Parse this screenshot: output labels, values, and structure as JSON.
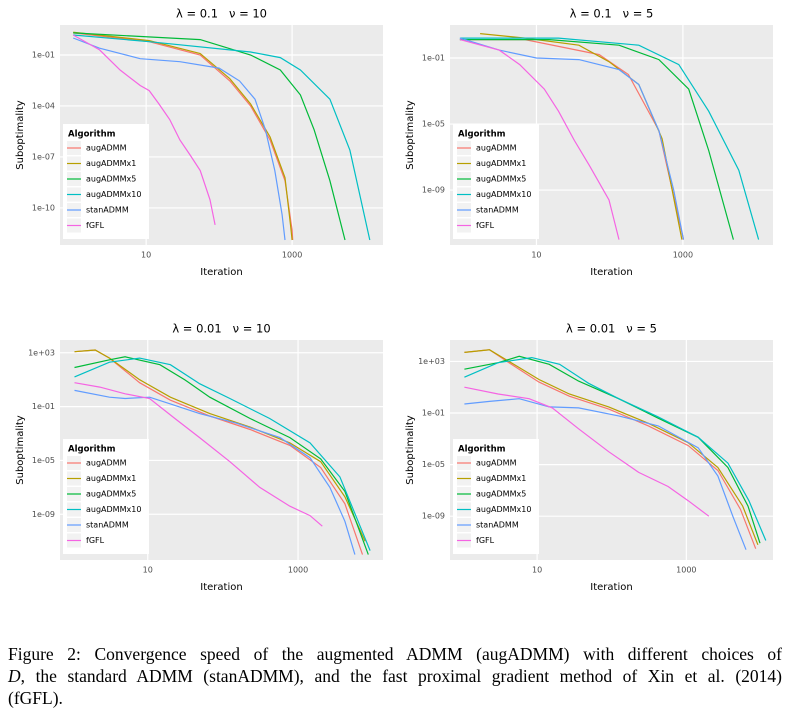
{
  "chart_data": [
    {
      "type": "line",
      "title": "λ = 0.1   ν = 10",
      "xlabel": "Iteration",
      "ylabel": "Suboptimality",
      "legend_title": "Algorithm",
      "legend": "bottom-left",
      "grid": true,
      "xlog": true,
      "ylog": true,
      "xlim": [
        0.66,
        17600
      ],
      "ylim": [
        6.6e-13,
        5.8
      ],
      "xticks": [
        10,
        1000
      ],
      "yticks": [
        {
          "value": 0.1,
          "label": "1e-01"
        },
        {
          "value": 0.0001,
          "label": "1e-04"
        },
        {
          "value": 1e-07,
          "label": "1e-07"
        },
        {
          "value": 1e-10,
          "label": "1e-10"
        }
      ],
      "series": [
        {
          "name": "augADMM",
          "color": "#F8766D",
          "x": [
            1,
            11,
            55,
            140,
            270,
            500,
            800,
            1000,
            1020
          ],
          "values": [
            2,
            0.6,
            0.1,
            0.003,
            0.0001,
            1e-06,
            4e-09,
            5e-12,
            1.3e-12
          ]
        },
        {
          "name": "augADMMx1",
          "color": "#B79F00",
          "x": [
            1,
            11,
            55,
            140,
            270,
            500,
            800,
            950,
            1000
          ],
          "values": [
            2.2,
            0.7,
            0.12,
            0.004,
            0.00013,
            1.5e-06,
            6e-09,
            1e-11,
            1.3e-12
          ]
        },
        {
          "name": "augADMMx5",
          "color": "#00BA38",
          "x": [
            1,
            55,
            270,
            690,
            1300,
            2000,
            3300,
            5300
          ],
          "values": [
            2,
            0.8,
            0.1,
            0.013,
            0.00045,
            4e-06,
            4e-09,
            1.3e-12
          ]
        },
        {
          "name": "augADMMx10",
          "color": "#00BFC4",
          "x": [
            1,
            11,
            270,
            690,
            1300,
            3300,
            6200,
            11600
          ],
          "values": [
            1.5,
            0.6,
            0.15,
            0.07,
            0.013,
            0.00025,
            2.5e-07,
            1.3e-12
          ]
        },
        {
          "name": "stanADMM",
          "color": "#619CFF",
          "x": [
            1,
            2.3,
            8.3,
            29,
            100,
            190,
            310,
            430,
            580,
            730,
            800
          ],
          "values": [
            1,
            0.25,
            0.06,
            0.04,
            0.017,
            0.003,
            0.00025,
            4e-06,
            1.6e-08,
            4e-11,
            1.3e-12
          ]
        },
        {
          "name": "fGFL",
          "color": "#F564E3",
          "x": [
            1,
            2.3,
            4.4,
            8.3,
            11,
            15,
            21,
            29,
            40,
            55,
            75,
            88
          ],
          "values": [
            1.5,
            0.2,
            0.013,
            0.0016,
            0.0008,
            0.00013,
            1.6e-05,
            1e-06,
            1.3e-07,
            1.6e-08,
            3e-10,
            1e-11
          ]
        }
      ]
    },
    {
      "type": "line",
      "title": "λ = 0.1   ν = 5",
      "xlabel": "Iteration",
      "ylabel": "Suboptimality",
      "legend_title": "Algorithm",
      "legend": "bottom-left",
      "grid": true,
      "xlog": true,
      "ylog": true,
      "xlim": [
        0.66,
        17000
      ],
      "ylim": [
        4.7e-13,
        10
      ],
      "xticks": [
        10,
        1000
      ],
      "yticks": [
        {
          "value": 0.1,
          "label": "1e-01"
        },
        {
          "value": 1e-05,
          "label": "1e-05"
        },
        {
          "value": 1e-09,
          "label": "1e-09"
        }
      ],
      "series": [
        {
          "name": "augADMM",
          "color": "#F8766D",
          "x": [
            0.9,
            7,
            72,
            180,
            470,
            1020
          ],
          "values": [
            1.3,
            1.3,
            0.16,
            0.01,
            4e-06,
            1e-12
          ]
        },
        {
          "name": "augADMMx1",
          "color": "#B79F00",
          "x": [
            1.7,
            7,
            38,
            98,
            250,
            520,
            970
          ],
          "values": [
            3,
            1.6,
            0.6,
            0.06,
            0.0025,
            1.3e-06,
            1e-12
          ]
        },
        {
          "name": "augADMMx5",
          "color": "#00BA38",
          "x": [
            0.9,
            15,
            134,
            470,
            1200,
            2250,
            4900
          ],
          "values": [
            1.3,
            1.3,
            0.6,
            0.08,
            0.0013,
            2.5e-07,
            1e-12
          ]
        },
        {
          "name": "augADMMx10",
          "color": "#00BFC4",
          "x": [
            0.9,
            20,
            250,
            880,
            2250,
            5800,
            10800
          ],
          "values": [
            1.6,
            1.6,
            0.6,
            0.04,
            6e-05,
            1.6e-08,
            1e-12
          ]
        },
        {
          "name": "stanADMM",
          "color": "#619CFF",
          "x": [
            0.9,
            3.1,
            10,
            38,
            134,
            250,
            470,
            750,
            1020
          ],
          "values": [
            1.6,
            0.3,
            0.1,
            0.08,
            0.02,
            0.0025,
            4e-06,
            1e-09,
            1e-12
          ]
        },
        {
          "name": "fGFL",
          "color": "#F564E3",
          "x": [
            0.9,
            3.1,
            5.9,
            12.8,
            20,
            33,
            53,
            98,
            134
          ],
          "values": [
            1.3,
            0.3,
            0.04,
            0.0013,
            6e-05,
            1e-06,
            3e-08,
            2.5e-10,
            1e-12
          ]
        }
      ]
    },
    {
      "type": "line",
      "title": "λ = 0.01   ν = 10",
      "xlabel": "Iteration",
      "ylabel": "Suboptimality",
      "legend_title": "Algorithm",
      "legend": "bottom-left",
      "grid": true,
      "xlog": true,
      "ylog": true,
      "xlim": [
        0.68,
        13500
      ],
      "ylim": [
        4e-13,
        8900
      ],
      "xticks": [
        10,
        1000
      ],
      "yticks": [
        {
          "value": 1000,
          "label": "1e+03"
        },
        {
          "value": 0.1,
          "label": "1e-01"
        },
        {
          "value": 1e-05,
          "label": "1e-05"
        },
        {
          "value": 1e-09,
          "label": "1e-09"
        }
      ],
      "series": [
        {
          "name": "augADMM",
          "color": "#F8766D",
          "x": [
            1.06,
            2,
            3.1,
            7.8,
            20,
            67,
            230,
            780,
            2000,
            4200,
            7200
          ],
          "values": [
            1200,
            1600,
            400,
            6,
            0.3,
            0.02,
            0.002,
            0.00013,
            3e-06,
            6e-09,
            1e-12
          ]
        },
        {
          "name": "augADMMx1",
          "color": "#B79F00",
          "x": [
            1.06,
            2,
            3.1,
            7.8,
            20,
            67,
            230,
            780,
            2000,
            4200,
            7800
          ],
          "values": [
            1200,
            1600,
            400,
            10,
            0.5,
            0.03,
            0.003,
            0.0002,
            8e-06,
            2e-08,
            1e-11
          ]
        },
        {
          "name": "augADMMx5",
          "color": "#00BA38",
          "x": [
            1.06,
            3.1,
            5,
            14.5,
            31,
            67,
            230,
            780,
            2000,
            4200,
            8600
          ],
          "values": [
            80,
            300,
            500,
            130,
            10,
            0.5,
            0.013,
            0.0005,
            1.3e-05,
            5e-08,
            1e-12
          ]
        },
        {
          "name": "augADMMx10",
          "color": "#00BFC4",
          "x": [
            1.06,
            3.1,
            7.8,
            20,
            49,
            124,
            420,
            1440,
            3600,
            6700,
            9100
          ],
          "values": [
            16,
            200,
            400,
            130,
            5,
            0.4,
            0.013,
            0.0002,
            6e-07,
            1.3e-10,
            2e-12
          ]
        },
        {
          "name": "stanADMM",
          "color": "#619CFF",
          "x": [
            1.06,
            3.1,
            5,
            10.6,
            20,
            49,
            150,
            575,
            1440,
            2650,
            4200,
            5700
          ],
          "values": [
            1.6,
            0.5,
            0.4,
            0.5,
            0.16,
            0.03,
            0.006,
            0.0005,
            1.6e-05,
            1e-07,
            3e-10,
            1e-12
          ]
        },
        {
          "name": "fGFL",
          "color": "#F564E3",
          "x": [
            1.06,
            2.3,
            5,
            10.6,
            23,
            49,
            124,
            310,
            780,
            1440,
            2100
          ],
          "values": [
            6,
            2.8,
            0.9,
            0.4,
            0.013,
            0.0005,
            8e-06,
            1e-07,
            4e-09,
            8e-10,
            1.3e-10
          ]
        }
      ]
    },
    {
      "type": "line",
      "title": "λ = 0.01   ν = 5",
      "xlabel": "Iteration",
      "ylabel": "Suboptimality",
      "legend_title": "Algorithm",
      "legend": "bottom-left",
      "grid": true,
      "xlog": true,
      "ylog": true,
      "xlim": [
        0.68,
        14500
      ],
      "ylim": [
        4e-13,
        46000
      ],
      "xticks": [
        10,
        1000
      ],
      "yticks": [
        {
          "value": 1000,
          "label": "1e+03"
        },
        {
          "value": 0.1,
          "label": "1e-01"
        },
        {
          "value": 1e-05,
          "label": "1e-05"
        },
        {
          "value": 1e-09,
          "label": "1e-09"
        }
      ],
      "series": [
        {
          "name": "augADMM",
          "color": "#F8766D",
          "x": [
            1.06,
            2.3,
            4.2,
            10.6,
            27,
            91,
            310,
            1060,
            2650,
            5300,
            8500
          ],
          "values": [
            5000,
            8000,
            800,
            25,
            2,
            0.2,
            0.01,
            0.0003,
            3.5e-06,
            3.5e-09,
            3e-12
          ]
        },
        {
          "name": "augADMMx1",
          "color": "#B79F00",
          "x": [
            1.06,
            2.3,
            4.2,
            10.6,
            27,
            91,
            310,
            1060,
            2650,
            5700,
            9100
          ],
          "values": [
            5000,
            8000,
            1000,
            40,
            3,
            0.3,
            0.016,
            0.0005,
            6e-06,
            6e-09,
            6e-12
          ]
        },
        {
          "name": "augADMMx5",
          "color": "#00BA38",
          "x": [
            1.06,
            3,
            5.75,
            14.5,
            36,
            124,
            420,
            1440,
            3600,
            6700,
            9700
          ],
          "values": [
            250,
            800,
            2500,
            600,
            30,
            1.3,
            0.04,
            0.0013,
            6e-06,
            6e-09,
            8e-12
          ]
        },
        {
          "name": "augADMMx10",
          "color": "#00BFC4",
          "x": [
            1.06,
            3,
            8.5,
            20,
            49,
            124,
            420,
            1440,
            3600,
            6900,
            11600
          ],
          "values": [
            60,
            800,
            2000,
            600,
            20,
            1.3,
            0.05,
            0.0013,
            1.3e-05,
            1.6e-08,
            1.3e-11
          ]
        },
        {
          "name": "stanADMM",
          "color": "#619CFF",
          "x": [
            1.06,
            2.3,
            5.75,
            14.5,
            36,
            124,
            420,
            1440,
            2650,
            4200,
            6300
          ],
          "values": [
            0.5,
            0.8,
            1.3,
            0.3,
            0.25,
            0.06,
            0.01,
            0.0002,
            1.3e-06,
            1e-09,
            2.5e-12
          ]
        },
        {
          "name": "fGFL",
          "color": "#F564E3",
          "x": [
            1.06,
            3,
            7.8,
            16,
            36,
            91,
            230,
            570,
            1060,
            2000
          ],
          "values": [
            10,
            3,
            1.3,
            0.25,
            0.006,
            0.0001,
            2.5e-06,
            2e-07,
            1.6e-08,
            1e-09
          ]
        }
      ]
    }
  ],
  "caption": {
    "line1": "Figure 2:  Convergence speed of the augmented ADMM (augADMM) with different choices of",
    "italic": "D",
    "line2": ", the standard ADMM (stanADMM), and the fast proximal gradient method of Xin et al. (2014)",
    "line3": "(fGFL)."
  }
}
